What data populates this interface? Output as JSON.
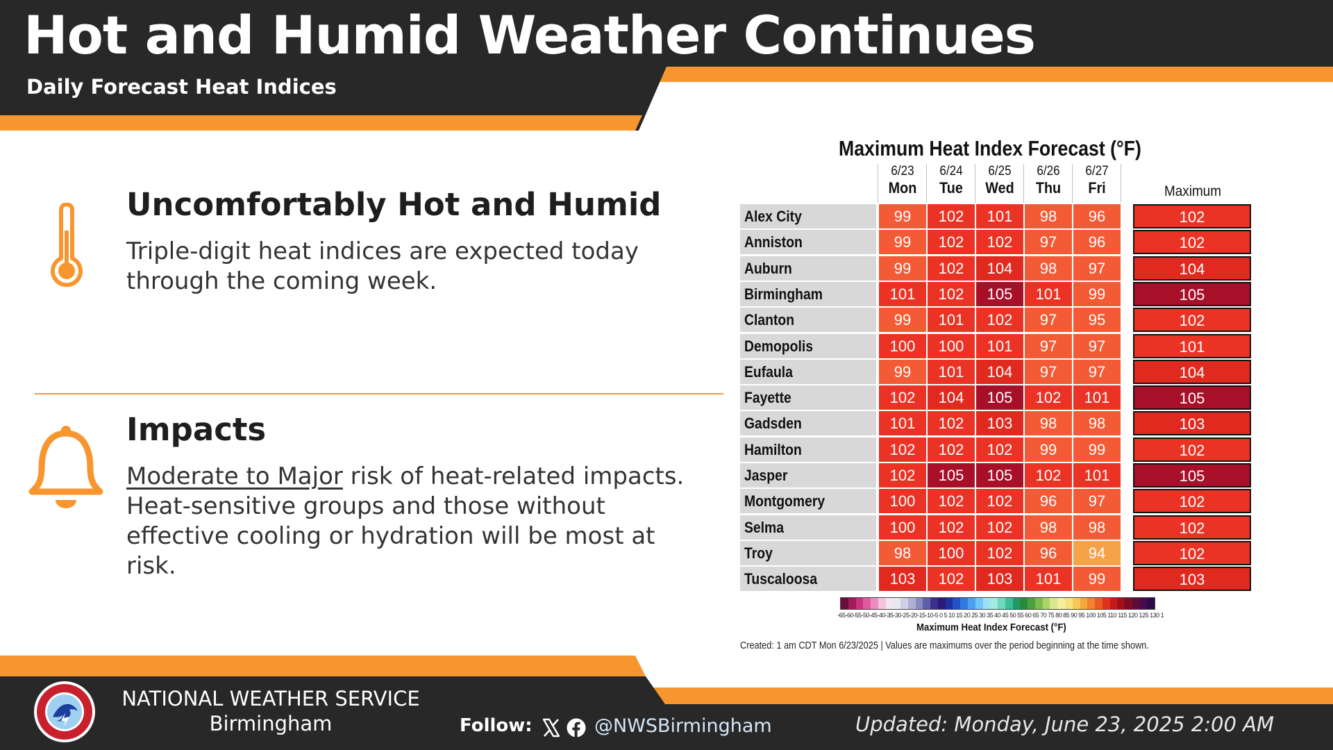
{
  "header": {
    "title": "Hot and Humid Weather Continues",
    "subtitle": "Daily Forecast Heat Indices"
  },
  "sections": [
    {
      "heading": "Uncomfortably Hot and Humid",
      "body": "Triple-digit heat indices are expected today through the coming week.",
      "icon": "thermometer-icon"
    },
    {
      "heading": "Impacts",
      "body_underlined": "Moderate to Major",
      "body_rest": " risk of heat-related impacts. Heat-sensitive groups and those without effective cooling or hydration will be most at risk.",
      "icon": "bell-icon"
    }
  ],
  "chart_data": {
    "type": "table",
    "title": "Maximum Heat Index Forecast (°F)",
    "columns": [
      {
        "date": "6/23",
        "day": "Mon"
      },
      {
        "date": "6/24",
        "day": "Tue"
      },
      {
        "date": "6/25",
        "day": "Wed"
      },
      {
        "date": "6/26",
        "day": "Thu"
      },
      {
        "date": "6/27",
        "day": "Fri"
      }
    ],
    "max_header": "Maximum",
    "rows": [
      {
        "name": "Alex City",
        "values": [
          99,
          102,
          101,
          98,
          96
        ],
        "max": 102
      },
      {
        "name": "Anniston",
        "values": [
          99,
          102,
          102,
          97,
          96
        ],
        "max": 102
      },
      {
        "name": "Auburn",
        "values": [
          99,
          102,
          104,
          98,
          97
        ],
        "max": 104
      },
      {
        "name": "Birmingham",
        "values": [
          101,
          102,
          105,
          101,
          99
        ],
        "max": 105
      },
      {
        "name": "Clanton",
        "values": [
          99,
          101,
          102,
          97,
          95
        ],
        "max": 102
      },
      {
        "name": "Demopolis",
        "values": [
          100,
          100,
          101,
          97,
          97
        ],
        "max": 101
      },
      {
        "name": "Eufaula",
        "values": [
          99,
          101,
          104,
          97,
          97
        ],
        "max": 104
      },
      {
        "name": "Fayette",
        "values": [
          102,
          104,
          105,
          102,
          101
        ],
        "max": 105
      },
      {
        "name": "Gadsden",
        "values": [
          101,
          102,
          103,
          98,
          98
        ],
        "max": 103
      },
      {
        "name": "Hamilton",
        "values": [
          102,
          102,
          102,
          99,
          99
        ],
        "max": 102
      },
      {
        "name": "Jasper",
        "values": [
          102,
          105,
          105,
          102,
          101
        ],
        "max": 105
      },
      {
        "name": "Montgomery",
        "values": [
          100,
          102,
          102,
          96,
          97
        ],
        "max": 102
      },
      {
        "name": "Selma",
        "values": [
          100,
          102,
          102,
          98,
          98
        ],
        "max": 102
      },
      {
        "name": "Troy",
        "values": [
          98,
          100,
          102,
          96,
          94
        ],
        "max": 102
      },
      {
        "name": "Tuscaloosa",
        "values": [
          103,
          102,
          103,
          101,
          99
        ],
        "max": 103
      }
    ],
    "color_bins": [
      {
        "min": 0,
        "max": 94,
        "color": "#f5a24a"
      },
      {
        "min": 95,
        "max": 99,
        "color": "#f25b36"
      },
      {
        "min": 100,
        "max": 102,
        "color": "#ea3324"
      },
      {
        "min": 103,
        "max": 104,
        "color": "#e0291f"
      },
      {
        "min": 105,
        "max": 200,
        "color": "#a8102a"
      }
    ],
    "scale": {
      "ticks": "-65-60-55-50-45-40-35-30-25-20-15-10-5 0 5 10 15 20 25 30 35 40 45 50 55 60 65 70 75 80 85 90 95 100 105 110 115 120 125 130 135 140",
      "colors": [
        "#6b0c3a",
        "#a11a5c",
        "#c9337e",
        "#e05aa0",
        "#ee8cc0",
        "#f6c3de",
        "#f2e6f0",
        "#e8e8f0",
        "#d0d0e4",
        "#b0b0d4",
        "#8a8ac2",
        "#6060a8",
        "#3c2f8e",
        "#2a1a7a",
        "#2030a0",
        "#2450c8",
        "#2f7ae0",
        "#4aa2ee",
        "#70c6f6",
        "#9de0f6",
        "#a0ece0",
        "#6ed8c0",
        "#3cbf98",
        "#1f9a6a",
        "#2a8a3c",
        "#4aa040",
        "#7cbc4a",
        "#aed468",
        "#d8e88c",
        "#f2f0a0",
        "#f8e27c",
        "#f8c858",
        "#f6a63c",
        "#f2822c",
        "#ec5a24",
        "#e0301e",
        "#c41a1a",
        "#a0121a",
        "#7c0c24",
        "#600a3a",
        "#460a52",
        "#2e0a4a"
      ],
      "label": "Maximum Heat Index Forecast (°F)"
    },
    "created": "Created: 1 am CDT Mon 6/23/2025  |  Values are maximums over the period beginning at the time shown."
  },
  "footer": {
    "org_line1": "NATIONAL WEATHER SERVICE",
    "org_line2": "Birmingham",
    "follow_label": "Follow:",
    "social_icons": [
      "x-icon",
      "facebook-icon"
    ],
    "handle": "@NWSBirmingham",
    "updated": "Updated: Monday, June 23, 2025 2:00 AM"
  },
  "colors": {
    "dark": "#282828",
    "orange": "#f7962f",
    "accent_line": "#f29a3b"
  }
}
